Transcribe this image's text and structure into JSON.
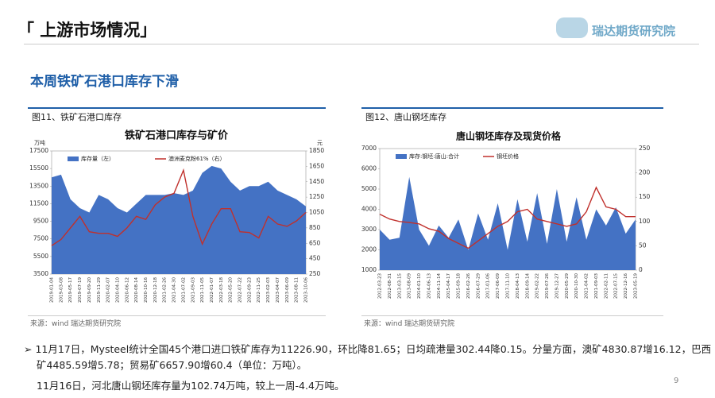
{
  "header": {
    "title": "「 上游市场情况」",
    "logo": "瑞达期货研究院",
    "subtitle": "本周铁矿石港口库存下滑"
  },
  "figures": [
    {
      "caption": "图11、铁矿石港口库存",
      "source": "来源：wind   瑞达期货研究院"
    },
    {
      "caption": "图12、唐山钢坯库存",
      "source": "来源：wind   瑞达期货研究院"
    }
  ],
  "bullets": [
    "11月17日，Mysteel统计全国45个港口进口铁矿库存为11226.90，环比降81.65；日均疏港量302.44降0.15。分量方面，澳矿4830.87增16.12，巴西矿4485.59增5.78；贸易矿6657.90增60.4（单位：万吨）。",
    "11月16日，河北唐山钢坯库存量为102.74万吨，较上一周-4.4万吨。"
  ],
  "page_number": "9",
  "chart_data": [
    {
      "type": "area-line",
      "title": "铁矿石港口库存与矿价",
      "y_unit": "万吨",
      "y2_unit": "元",
      "grid": false,
      "legend": "top",
      "categories": [
        "2019-01-04",
        "2019-03-08",
        "2019-05-17",
        "2019-07-19",
        "2019-09-20",
        "2019-11-29",
        "2020-02-07",
        "2020-04-10",
        "2020-06-12",
        "2020-08-14",
        "2020-10-16",
        "2020-12-18",
        "2021-02-26",
        "2021-04-30",
        "2021-07-02",
        "2021-09-03",
        "2021-11-05",
        "2022-01-07",
        "2022-03-18",
        "2022-05-20",
        "2022-07-22",
        "2022-09-23",
        "2022-11-25",
        "2023-02-03",
        "2023-04-07",
        "2023-06-09",
        "2023-08-11",
        "2023-10-06"
      ],
      "series": [
        {
          "name": "库存量（左）",
          "color": "#4472c4",
          "kind": "area",
          "values": [
            14500,
            14800,
            12000,
            11000,
            10500,
            12500,
            12000,
            11000,
            10500,
            11500,
            12500,
            12500,
            12500,
            12700,
            12500,
            13000,
            15000,
            15800,
            15500,
            14000,
            13000,
            13500,
            13500,
            14000,
            13000,
            12500,
            12000,
            11200
          ]
        },
        {
          "name": "澳洲麦克粉61%（右）",
          "color": "#c0302c",
          "kind": "line",
          "axis": "y2",
          "values": [
            620,
            700,
            850,
            1000,
            800,
            780,
            780,
            740,
            850,
            1000,
            960,
            1150,
            1250,
            1300,
            1600,
            1000,
            640,
            900,
            1100,
            1100,
            800,
            790,
            720,
            1000,
            900,
            870,
            940,
            1050
          ]
        }
      ],
      "ylim": [
        3500,
        17500
      ],
      "yticks": [
        3500,
        5500,
        7500,
        9500,
        11500,
        13500,
        15500,
        17500
      ],
      "y2lim": [
        250,
        1850
      ],
      "y2ticks": [
        250,
        450,
        650,
        850,
        1050,
        1250,
        1450,
        1650,
        1850
      ]
    },
    {
      "type": "area-line",
      "title": "唐山钢坯库存及现货价格",
      "grid": false,
      "legend": "top",
      "categories": [
        "2012-03-23",
        "2012-08-31",
        "2013-03-15",
        "2013-08-09",
        "2014-01-10",
        "2014-06-13",
        "2014-11-14",
        "2015-04-17",
        "2015-09-18",
        "2016-02-26",
        "2016-07-29",
        "2017-01-06",
        "2017-06-09",
        "2017-11-10",
        "2018-04-13",
        "2018-09-14",
        "2019-02-22",
        "2019-07-26",
        "2019-12-27",
        "2020-05-29",
        "2020-10-30",
        "2021-04-02",
        "2021-09-03",
        "2022-02-11",
        "2022-07-15",
        "2022-12-16",
        "2023-05-19"
      ],
      "series": [
        {
          "name": "库存:钢坯:唐山:合计",
          "color": "#4472c4",
          "kind": "area",
          "values": [
            3000,
            2500,
            2600,
            5600,
            3000,
            2200,
            3200,
            2600,
            3500,
            2000,
            3800,
            2500,
            4300,
            2000,
            4500,
            2400,
            4800,
            2300,
            5000,
            2400,
            4600,
            2500,
            4000,
            3200,
            4100,
            2800,
            3500
          ]
        },
        {
          "name": "钢坯价格",
          "color": "#c0302c",
          "kind": "line",
          "axis": "y2",
          "values": [
            115,
            105,
            100,
            98,
            95,
            85,
            80,
            65,
            55,
            45,
            60,
            75,
            90,
            100,
            120,
            125,
            105,
            100,
            95,
            90,
            95,
            120,
            170,
            130,
            125,
            110,
            110
          ]
        }
      ],
      "ylim": [
        1000,
        7000
      ],
      "yticks": [
        1000,
        2000,
        3000,
        4000,
        5000,
        6000,
        7000
      ],
      "y2lim": [
        0,
        250
      ],
      "y2ticks": [
        0,
        50,
        100,
        150,
        200,
        250
      ]
    }
  ]
}
